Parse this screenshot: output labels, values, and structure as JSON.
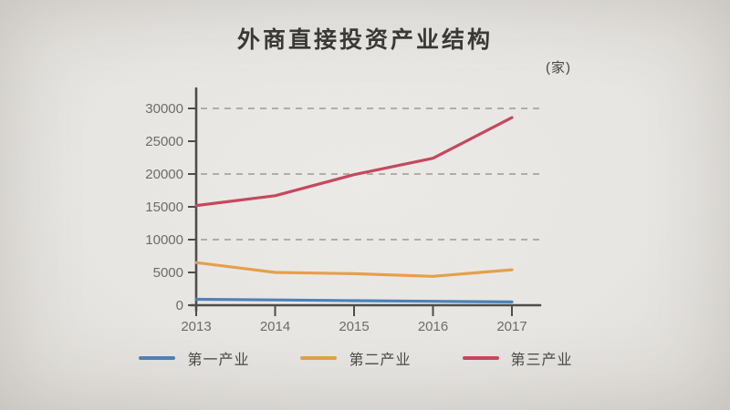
{
  "page": {
    "title": "外商直接投资产业结构",
    "unit_label": "(家)"
  },
  "chart_data": {
    "type": "line",
    "title": "外商直接投资产业结构",
    "unit_label": "(家)",
    "categories": [
      "2013",
      "2014",
      "2015",
      "2016",
      "2017"
    ],
    "series": [
      {
        "name": "第一产业",
        "key": "primary-industry",
        "color": "#4d82b8",
        "values": [
          900,
          800,
          700,
          600,
          500
        ]
      },
      {
        "name": "第二产业",
        "key": "secondary-industry",
        "color": "#e4a04b",
        "values": [
          6500,
          5000,
          4800,
          4400,
          5400
        ]
      },
      {
        "name": "第三产业",
        "key": "tertiary-industry",
        "color": "#c5485f",
        "values": [
          15200,
          16700,
          19900,
          22400,
          28600
        ]
      }
    ],
    "ylim": [
      0,
      30000
    ],
    "yticks": [
      0,
      5000,
      10000,
      15000,
      20000,
      25000,
      30000
    ],
    "gridline_values": [
      10000,
      20000,
      30000
    ],
    "grid_style": "dashed",
    "grid_color": "#9c9a96",
    "axis_color": "#4f4d4a",
    "tick_label_color": "#6e6c68",
    "legend_position": "bottom",
    "xlabel": "",
    "ylabel": ""
  }
}
